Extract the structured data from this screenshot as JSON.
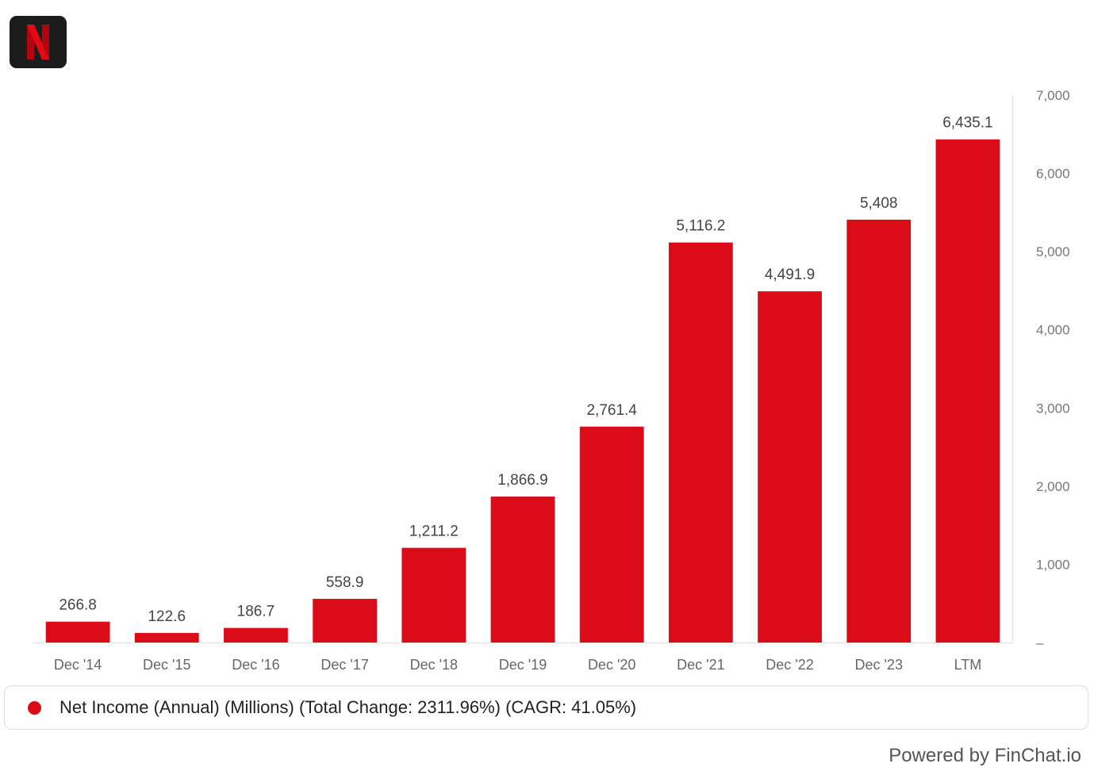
{
  "logo": {
    "letter": "N",
    "icon": "netflix-logo-icon",
    "color": "#e50914"
  },
  "chart_data": {
    "type": "bar",
    "categories": [
      "Dec '14",
      "Dec '15",
      "Dec '16",
      "Dec '17",
      "Dec '18",
      "Dec '19",
      "Dec '20",
      "Dec '21",
      "Dec '22",
      "Dec '23",
      "LTM"
    ],
    "values": [
      266.8,
      122.6,
      186.7,
      558.9,
      1211.2,
      1866.9,
      2761.4,
      5116.2,
      4491.9,
      5408,
      6435.1
    ],
    "value_labels": [
      "266.8",
      "122.6",
      "186.7",
      "558.9",
      "1,211.2",
      "1,866.9",
      "2,761.4",
      "5,116.2",
      "4,491.9",
      "5,408",
      "6,435.1"
    ],
    "ylim": [
      0,
      7000
    ],
    "y_ticks": [
      0,
      1000,
      2000,
      3000,
      4000,
      5000,
      6000,
      7000
    ],
    "y_tick_labels": [
      "–",
      "1,000",
      "2,000",
      "3,000",
      "4,000",
      "5,000",
      "6,000",
      "7,000"
    ],
    "y_axis_position": "right",
    "grid": false,
    "bar_color": "#db0b17",
    "legend_position": "bottom",
    "series": [
      {
        "name": "Net Income (Annual) (Millions) (Total Change: 2311.96%) (CAGR: 41.05%)",
        "color": "#db0b17"
      }
    ]
  },
  "footer": {
    "text": "Powered by FinChat.io"
  }
}
